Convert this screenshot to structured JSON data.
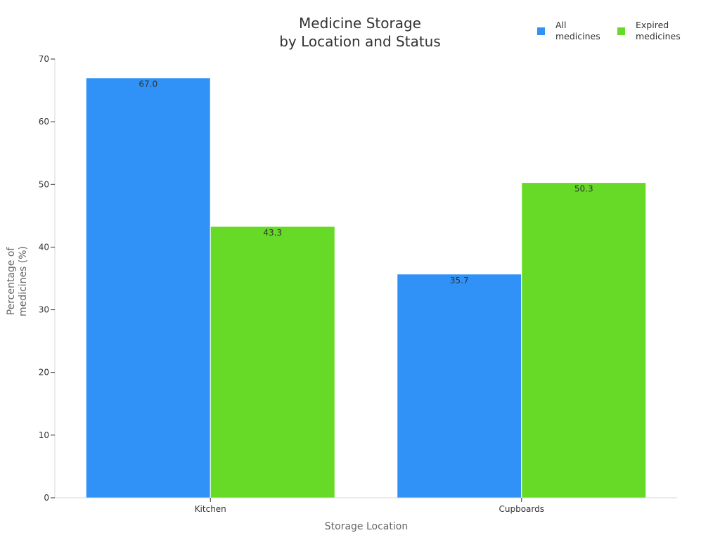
{
  "title_lines": [
    "Medicine Storage",
    "by Location and Status"
  ],
  "colors": {
    "all": "#3092f7",
    "expired": "#66da26"
  },
  "chart_data": {
    "type": "bar",
    "title": "Medicine Storage by Location and Status",
    "xlabel": "Storage Location",
    "ylabel": "Percentage of medicines (%)",
    "categories": [
      "Kitchen",
      "Cupboards"
    ],
    "series": [
      {
        "name": "All medicines",
        "values": [
          67.0,
          35.7
        ]
      },
      {
        "name": "Expired medicines",
        "values": [
          43.3,
          50.3
        ]
      }
    ],
    "ylim": [
      0,
      70
    ],
    "yticks": [
      0,
      10,
      20,
      30,
      40,
      50,
      60,
      70
    ],
    "grid": false,
    "legend_position": "top-right"
  }
}
